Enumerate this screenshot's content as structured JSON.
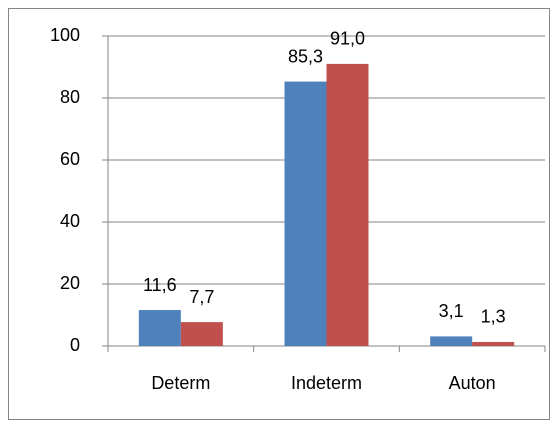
{
  "chart_data": {
    "type": "bar",
    "categories": [
      "Determ",
      "Indeterm",
      "Auton"
    ],
    "series": [
      {
        "color": "#4f81bd",
        "values": [
          11.6,
          85.3,
          3.1
        ],
        "value_labels": [
          "11,6",
          "85,3",
          "3,1"
        ]
      },
      {
        "color": "#c0504d",
        "values": [
          7.7,
          91.0,
          1.3
        ],
        "value_labels": [
          "7,7",
          "91,0",
          "1,3"
        ]
      }
    ],
    "ylim": [
      0,
      100
    ],
    "yticks": [
      0,
      20,
      40,
      60,
      80,
      100
    ],
    "grid": true
  }
}
